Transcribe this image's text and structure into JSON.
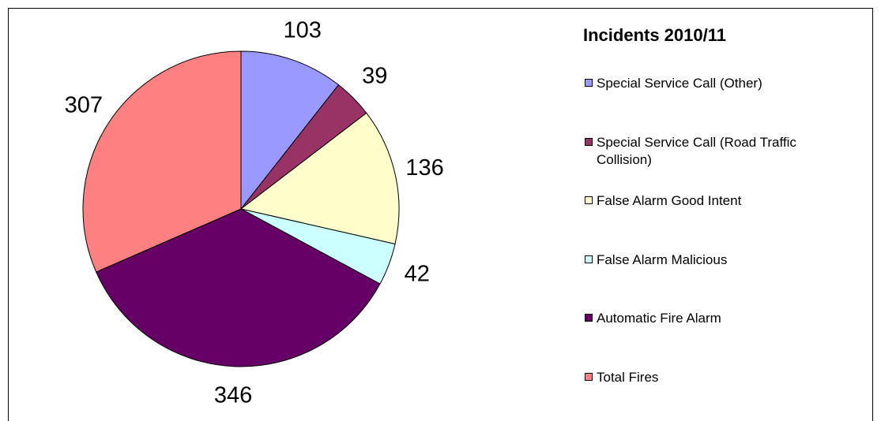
{
  "chart_data": {
    "type": "pie",
    "title": "Incidents 2010/11",
    "categories": [
      "Special Service Call (Other)",
      "Special Service Call (Road Traffic Collision)",
      "False Alarm Good Intent",
      "False Alarm Malicious",
      "Automatic Fire Alarm",
      "Total Fires"
    ],
    "values": [
      103,
      39,
      136,
      42,
      346,
      307
    ],
    "colors": [
      "#9999ff",
      "#993366",
      "#ffffcc",
      "#ccffff",
      "#660066",
      "#ff8080"
    ],
    "legend": "right"
  }
}
